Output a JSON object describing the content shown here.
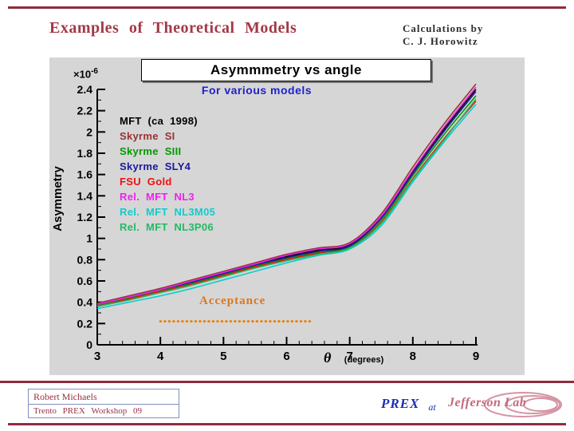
{
  "slide": {
    "title": "Examples of Theoretical Models",
    "credit_line1": "Calculations by",
    "credit_line2": "C. J. Horowitz"
  },
  "footer": {
    "author": "Robert Michaels",
    "workshop": "Trento PREX Workshop 09",
    "prex_label": "PREX",
    "at_label": "at",
    "logo_text": "Jefferson Lab"
  },
  "chart_data": {
    "type": "line",
    "title": "Asymmmetry vs angle",
    "subtitle": "For various models",
    "ylabel": "Asymmetry",
    "y_scale_prefix": "×10",
    "y_scale_exponent": "-6",
    "xlabel_symbol": "θ",
    "xlabel_unit": "(degrees)",
    "xlim": [
      3,
      9
    ],
    "ylim": [
      0,
      2.4
    ],
    "grid": false,
    "legend_position": "inside upper-left",
    "x_ticks": [
      3,
      4,
      5,
      6,
      7,
      8,
      9
    ],
    "x_tick_labels": [
      "3",
      "4",
      "5",
      "6",
      "7",
      "8",
      "9"
    ],
    "y_ticks": [
      0,
      0.2,
      0.4,
      0.6,
      0.8,
      1.0,
      1.2,
      1.4,
      1.6,
      1.8,
      2.0,
      2.2,
      2.4
    ],
    "y_tick_labels": [
      "0",
      "0.2",
      "0.4",
      "0.6",
      "0.8",
      "1",
      "1.2",
      "1.4",
      "1.6",
      "1.8",
      "2",
      "2.2",
      "2.4"
    ],
    "x": [
      3,
      3.5,
      4,
      4.5,
      5,
      5.5,
      6,
      6.5,
      7,
      7.5,
      8,
      8.5,
      9
    ],
    "series": [
      {
        "name": "MFT (ca 1998)",
        "color": "#000000",
        "values": [
          0.38,
          0.45,
          0.52,
          0.6,
          0.68,
          0.76,
          0.83,
          0.89,
          0.94,
          1.2,
          1.63,
          2.03,
          2.4
        ]
      },
      {
        "name": "Skyrme SI",
        "color": "#993333",
        "values": [
          0.39,
          0.46,
          0.53,
          0.61,
          0.69,
          0.77,
          0.85,
          0.91,
          0.96,
          1.23,
          1.67,
          2.08,
          2.45
        ]
      },
      {
        "name": "Skyrme SIII",
        "color": "#009900",
        "values": [
          0.37,
          0.44,
          0.51,
          0.58,
          0.66,
          0.74,
          0.81,
          0.87,
          0.92,
          1.17,
          1.59,
          1.98,
          2.34
        ]
      },
      {
        "name": "Skyrme SLY4",
        "color": "#1a1a99",
        "values": [
          0.38,
          0.45,
          0.52,
          0.59,
          0.67,
          0.75,
          0.82,
          0.88,
          0.93,
          1.19,
          1.61,
          2.01,
          2.38
        ]
      },
      {
        "name": "FSU Gold",
        "color": "#ee1111",
        "values": [
          0.36,
          0.43,
          0.5,
          0.57,
          0.65,
          0.73,
          0.8,
          0.86,
          0.91,
          1.15,
          1.56,
          1.94,
          2.29
        ]
      },
      {
        "name": "Rel. MFT NL3",
        "color": "#ee22ee",
        "values": [
          0.38,
          0.45,
          0.52,
          0.6,
          0.68,
          0.76,
          0.84,
          0.9,
          0.95,
          1.21,
          1.64,
          2.05,
          2.42
        ]
      },
      {
        "name": "Rel. MFT NL3M05",
        "color": "#11cccc",
        "values": [
          0.34,
          0.4,
          0.46,
          0.53,
          0.61,
          0.69,
          0.77,
          0.84,
          0.9,
          1.12,
          1.53,
          1.91,
          2.26
        ]
      },
      {
        "name": "Rel. MFT NL3P06",
        "color": "#22bb66",
        "values": [
          0.36,
          0.42,
          0.49,
          0.56,
          0.64,
          0.72,
          0.79,
          0.85,
          0.91,
          1.14,
          1.55,
          1.93,
          2.31
        ]
      }
    ],
    "acceptance": {
      "label": "Acceptance",
      "y": 0.22,
      "x_start": 4.0,
      "x_end": 6.4,
      "color": "#e8820c"
    }
  }
}
